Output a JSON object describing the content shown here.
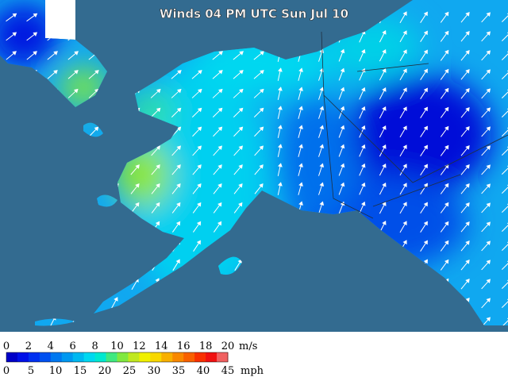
{
  "title": "Winds 04 PM UTC Sun Jul 10",
  "legend": {
    "ms_labels": [
      0,
      2,
      4,
      6,
      8,
      10,
      12,
      14,
      16,
      18,
      20
    ],
    "ms_unit": "m/s",
    "mph_labels": [
      0,
      5,
      10,
      15,
      20,
      25,
      30,
      35,
      40,
      45
    ],
    "mph_unit": "mph",
    "colors": [
      "#0000c8",
      "#0010e8",
      "#0030f0",
      "#0050f0",
      "#0078f0",
      "#0098f0",
      "#00b8f0",
      "#00d8f0",
      "#00e8d0",
      "#40e880",
      "#80e840",
      "#c0e820",
      "#f0f000",
      "#f8d800",
      "#f8b000",
      "#f88800",
      "#f86000",
      "#f83000",
      "#f01010",
      "#f06060"
    ]
  }
}
